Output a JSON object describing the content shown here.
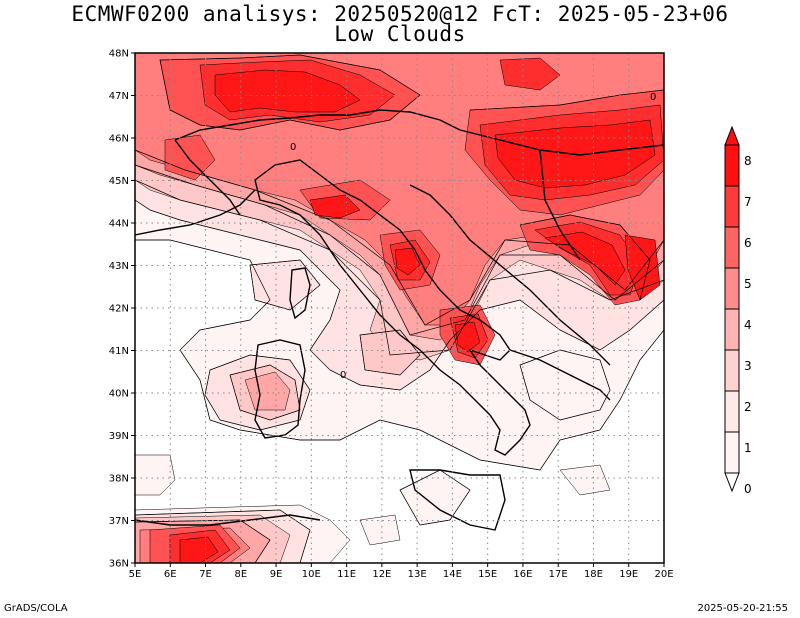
{
  "title_line1": "ECMWF0200 analisys: 20250520@12 FcT: 2025-05-23+06",
  "title_line2": "Low Clouds",
  "footer_left": "GrADS/COLA",
  "footer_right": "2025-05-20-21:55",
  "lat_labels": [
    "48N",
    "47N",
    "46N",
    "45N",
    "44N",
    "43N",
    "42N",
    "41N",
    "40N",
    "39N",
    "38N",
    "37N",
    "36N"
  ],
  "lon_labels": [
    "5E",
    "6E",
    "7E",
    "8E",
    "9E",
    "10E",
    "11E",
    "12E",
    "13E",
    "14E",
    "15E",
    "16E",
    "17E",
    "18E",
    "19E",
    "20E"
  ],
  "colorbar": {
    "labels": [
      "8",
      "7",
      "6",
      "5",
      "4",
      "3",
      "2",
      "1",
      "0"
    ],
    "colors": [
      "#ff1010",
      "#ff3a3a",
      "#ff6464",
      "#ff8c8c",
      "#ffb4b4",
      "#ffd2d2",
      "#ffe8e8",
      "#fff4f4"
    ]
  },
  "fill_colors": {
    "c0": "#fff4f4",
    "c1": "#ffe2e2",
    "c2": "#ffc8c8",
    "c3": "#ffa6a6",
    "c4": "#ff7e7e",
    "c5": "#ff5252",
    "c6": "#ff2e2e",
    "c7": "#ff1616"
  },
  "contour_label": "0"
}
